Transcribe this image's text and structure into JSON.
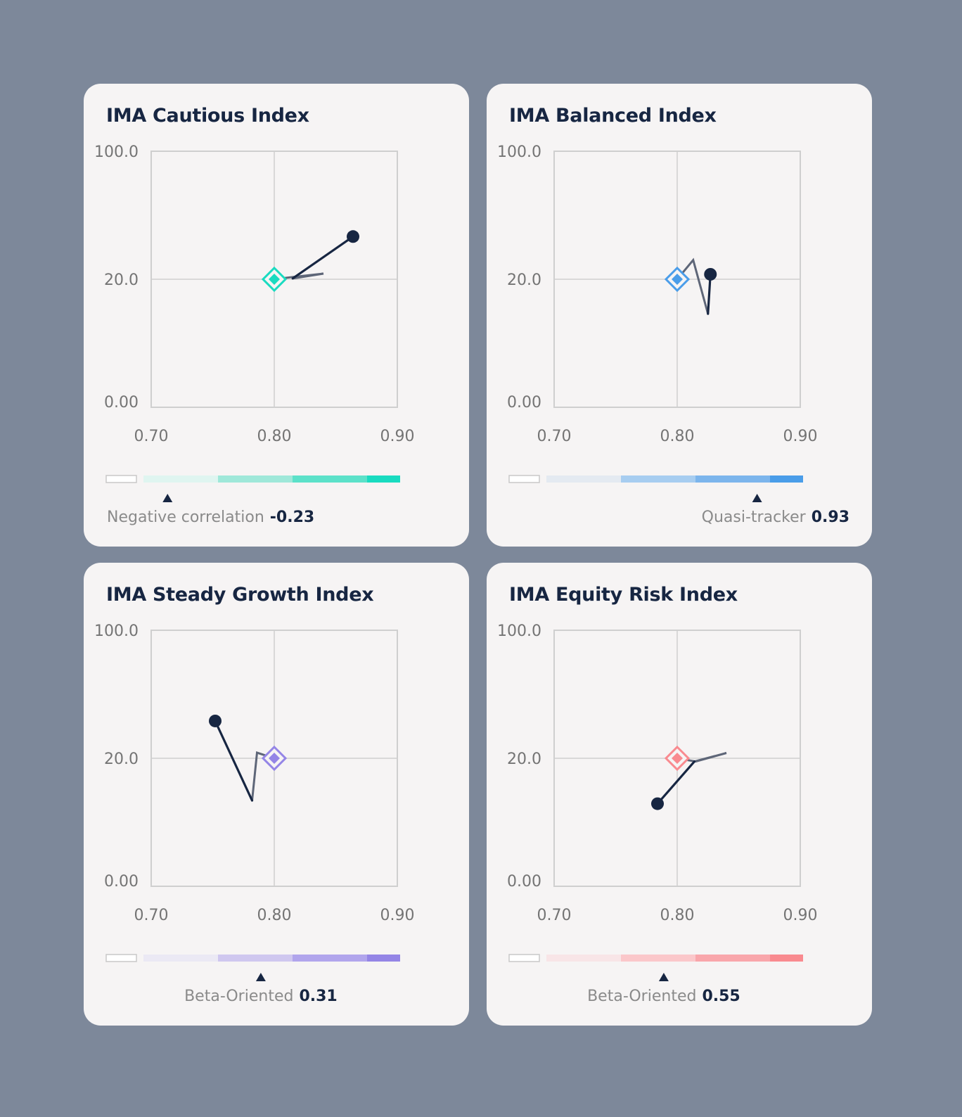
{
  "chart_data": [
    {
      "type": "line",
      "title": "IMA Cautious Index",
      "x_ticks": [
        "0.70",
        "0.80",
        "0.90"
      ],
      "y_ticks": [
        "100.0",
        "20.0",
        "0.00"
      ],
      "xlim": [
        0.7,
        0.9
      ],
      "y_scale": "piecewise",
      "grid": true,
      "benchmark": {
        "x": 0.8,
        "y": 20.0
      },
      "series": [
        {
          "x": [
            0.8,
            0.815,
            0.84,
            0.815,
            0.864
          ],
          "y": [
            20.0,
            21.4,
            23.5,
            20.5,
            46.7
          ]
        }
      ],
      "accent": "#19dbc0",
      "scale_colors": [
        "#dff5f0",
        "#9fe8d9",
        "#5ce1c9",
        "#19dbc0"
      ],
      "marker_position": 0.08,
      "caption_label": "Negative correlation",
      "caption_value": "-0.23",
      "caption_align": "left"
    },
    {
      "type": "line",
      "title": "IMA Balanced Index",
      "x_ticks": [
        "0.70",
        "0.80",
        "0.90"
      ],
      "y_ticks": [
        "100.0",
        "20.0",
        "0.00"
      ],
      "xlim": [
        0.7,
        0.9
      ],
      "y_scale": "piecewise",
      "grid": true,
      "benchmark": {
        "x": 0.8,
        "y": 20.0
      },
      "series": [
        {
          "x": [
            0.8,
            0.813,
            0.825,
            0.827
          ],
          "y": [
            20.0,
            32.0,
            14.6,
            23.1
          ]
        }
      ],
      "accent": "#4a9de9",
      "scale_colors": [
        "#e4eaf1",
        "#a7cdf0",
        "#7cb5ec",
        "#4a9de9"
      ],
      "marker_position": 0.7,
      "caption_label": "Quasi-tracker",
      "caption_value": "0.93",
      "caption_align": "right"
    },
    {
      "type": "line",
      "title": "IMA Steady Growth Index",
      "x_ticks": [
        "0.70",
        "0.80",
        "0.90"
      ],
      "y_ticks": [
        "100.0",
        "20.0",
        "0.00"
      ],
      "xlim": [
        0.7,
        0.9
      ],
      "y_scale": "piecewise",
      "grid": true,
      "benchmark": {
        "x": 0.8,
        "y": 20.0
      },
      "series": [
        {
          "x": [
            0.8,
            0.786,
            0.782,
            0.752
          ],
          "y": [
            20.0,
            23.5,
            13.4,
            43.3
          ]
        }
      ],
      "accent": "#9485e6",
      "scale_colors": [
        "#ebe9f4",
        "#cfc7ef",
        "#b1a5ec",
        "#9485e6"
      ],
      "marker_position": 0.39,
      "caption_label": "Beta-Oriented",
      "caption_value": "0.31",
      "caption_align": "center"
    },
    {
      "type": "line",
      "title": "IMA Equity Risk Index",
      "x_ticks": [
        "0.70",
        "0.80",
        "0.90"
      ],
      "y_ticks": [
        "100.0",
        "20.0",
        "0.00"
      ],
      "xlim": [
        0.7,
        0.9
      ],
      "y_scale": "piecewise",
      "grid": true,
      "benchmark": {
        "x": 0.8,
        "y": 20.0
      },
      "series": [
        {
          "x": [
            0.8,
            0.815,
            0.84,
            0.814,
            0.784
          ],
          "y": [
            20.0,
            19.5,
            23.3,
            19.5,
            12.9
          ]
        }
      ],
      "accent": "#f98a8f",
      "scale_colors": [
        "#f8e5e7",
        "#fbc7ca",
        "#f9a6ab",
        "#f98a8f"
      ],
      "marker_position": 0.39,
      "caption_label": "Beta-Oriented",
      "caption_value": "0.55",
      "caption_align": "center"
    }
  ]
}
